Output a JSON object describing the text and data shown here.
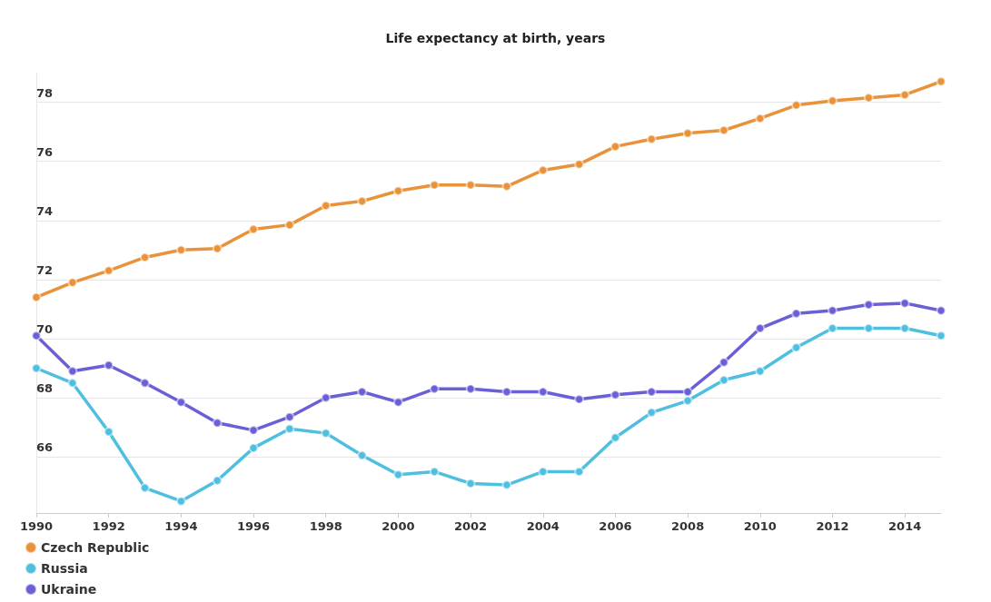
{
  "chart_data": {
    "type": "line",
    "title": "Life expectancy at birth, years",
    "x": [
      1990,
      1991,
      1992,
      1993,
      1994,
      1995,
      1996,
      1997,
      1998,
      1999,
      2000,
      2001,
      2002,
      2003,
      2004,
      2005,
      2006,
      2007,
      2008,
      2009,
      2010,
      2011,
      2012,
      2013,
      2014,
      2015
    ],
    "series": [
      {
        "name": "Czech Republic",
        "color": "#e8923a",
        "values": [
          71.4,
          71.9,
          72.3,
          72.75,
          73.0,
          73.05,
          73.7,
          73.85,
          74.5,
          74.65,
          75.0,
          75.2,
          75.2,
          75.15,
          75.7,
          75.9,
          76.5,
          76.75,
          76.95,
          77.05,
          77.45,
          77.9,
          78.05,
          78.15,
          78.25,
          78.7
        ]
      },
      {
        "name": "Russia",
        "color": "#4fbfe0",
        "values": [
          69.0,
          68.5,
          66.85,
          64.95,
          64.5,
          65.2,
          66.3,
          66.95,
          66.8,
          66.05,
          65.4,
          65.5,
          65.1,
          65.05,
          65.5,
          65.5,
          66.65,
          67.5,
          67.9,
          68.6,
          68.9,
          69.7,
          70.35,
          70.35,
          70.35,
          70.1
        ]
      },
      {
        "name": "Ukraine",
        "color": "#6a5fd6",
        "values": [
          70.1,
          68.9,
          69.1,
          68.5,
          67.85,
          67.15,
          66.9,
          67.35,
          68.0,
          68.2,
          67.85,
          68.3,
          68.3,
          68.2,
          68.2,
          67.95,
          68.1,
          68.2,
          68.2,
          69.2,
          70.35,
          70.85,
          70.95,
          71.15,
          71.2,
          70.95
        ]
      }
    ],
    "xlim": [
      1990,
      2015
    ],
    "xticks": [
      1990,
      1992,
      1994,
      1996,
      1998,
      2000,
      2002,
      2004,
      2006,
      2008,
      2010,
      2012,
      2014
    ],
    "ylim": [
      64.1,
      79
    ],
    "yticks": [
      66,
      68,
      70,
      72,
      74,
      76,
      78
    ],
    "grid": "y",
    "legend": "bottom left",
    "marker": "circle",
    "line_style": "solid"
  }
}
